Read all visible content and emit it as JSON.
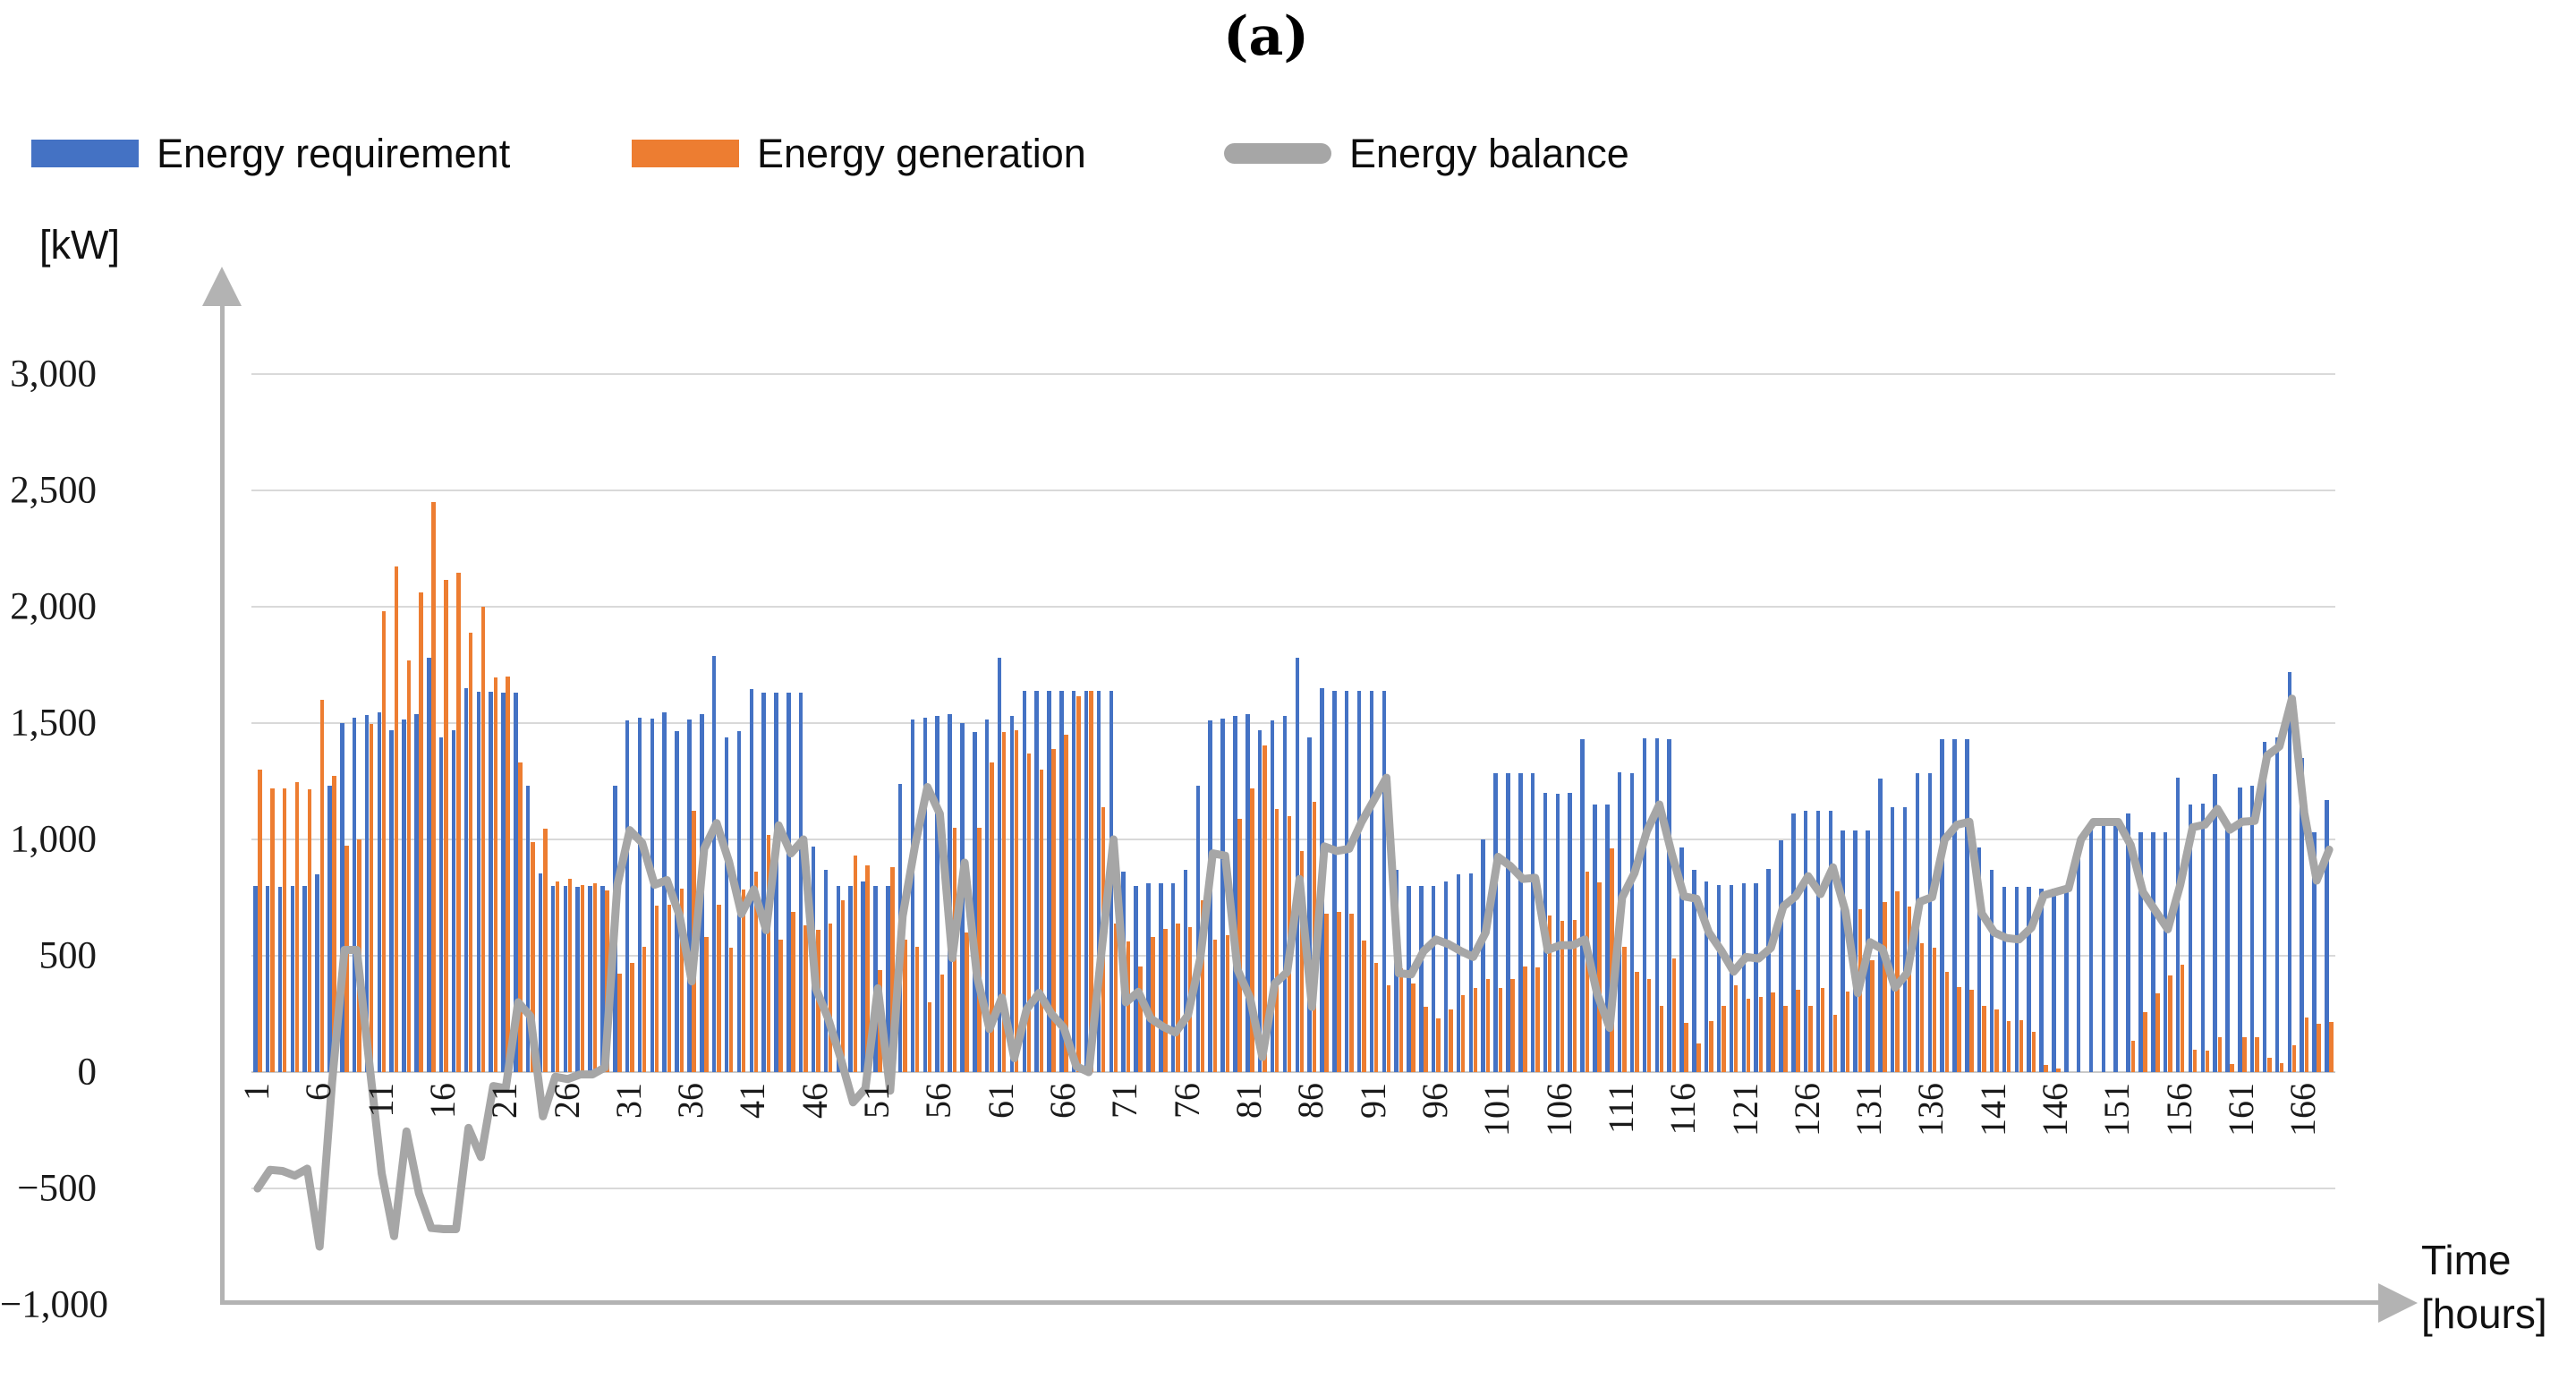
{
  "title": "(a)",
  "legend": {
    "items": [
      {
        "label": "Energy requirement",
        "color": "#4472C4",
        "shape": "rect"
      },
      {
        "label": "Energy generation",
        "color": "#ED7D31",
        "shape": "rect"
      },
      {
        "label": "Energy balance",
        "color": "#A6A6A6",
        "shape": "line"
      }
    ]
  },
  "y_axis": {
    "unit_label": "[kW]",
    "ticks": [
      {
        "label": "3,000",
        "value": 3000
      },
      {
        "label": "2,500",
        "value": 2500
      },
      {
        "label": "2,000",
        "value": 2000
      },
      {
        "label": "1,500",
        "value": 1500
      },
      {
        "label": "1,000",
        "value": 1000
      },
      {
        "label": "500",
        "value": 500
      },
      {
        "label": "0",
        "value": 0
      },
      {
        "label": "−500",
        "value": -500
      },
      {
        "label": "−1,000",
        "value": -1000
      }
    ],
    "gridline_values": [
      3000,
      2500,
      2000,
      1500,
      1000,
      500,
      0,
      -500
    ]
  },
  "x_axis": {
    "title_line1": "Time",
    "title_line2": "[hours]",
    "tick_hours": [
      1,
      6,
      11,
      16,
      21,
      26,
      31,
      36,
      41,
      46,
      51,
      56,
      61,
      66,
      71,
      76,
      81,
      86,
      91,
      96,
      101,
      106,
      111,
      116,
      121,
      126,
      131,
      136,
      141,
      146,
      151,
      156,
      161,
      166
    ]
  },
  "chart_data": {
    "type": "bar+line",
    "x_start_hour": 1,
    "hours_total": 168,
    "ylim": [
      -1000,
      3000
    ],
    "grid": "horizontal",
    "legend_position": "top-left",
    "series": [
      {
        "name": "Energy requirement",
        "type": "bar",
        "color": "#4472C4",
        "values": [
          800,
          800,
          795,
          800,
          800,
          850,
          1230,
          1500,
          1525,
          1535,
          1545,
          1470,
          1515,
          1540,
          1780,
          1440,
          1470,
          1650,
          1635,
          1635,
          1630,
          1630,
          1230,
          855,
          800,
          800,
          795,
          800,
          800,
          1230,
          1510,
          1525,
          1520,
          1545,
          1465,
          1515,
          1540,
          1790,
          1440,
          1465,
          1645,
          1630,
          1630,
          1630,
          1630,
          970,
          870,
          800,
          800,
          820,
          800,
          800,
          1240,
          1515,
          1525,
          1530,
          1540,
          1500,
          1460,
          1515,
          1780,
          1530,
          1640,
          1640,
          1640,
          1640,
          1640,
          1640,
          1640,
          1640,
          860,
          800,
          810,
          810,
          810,
          870,
          1230,
          1510,
          1520,
          1530,
          1540,
          1470,
          1510,
          1530,
          1780,
          1440,
          1650,
          1640,
          1640,
          1640,
          1640,
          1640,
          870,
          800,
          800,
          800,
          820,
          850,
          855,
          1000,
          1285,
          1285,
          1285,
          1285,
          1200,
          1195,
          1200,
          1430,
          1150,
          1150,
          1290,
          1285,
          1435,
          1435,
          1430,
          965,
          870,
          820,
          805,
          805,
          810,
          810,
          875,
          995,
          1110,
          1125,
          1125,
          1125,
          1040,
          1040,
          1040,
          1260,
          1140,
          1140,
          1285,
          1285,
          1430,
          1430,
          1430,
          965,
          870,
          795,
          795,
          795,
          790,
          790,
          790,
          1000,
          1075,
          1075,
          1075,
          1110,
          1030,
          1030,
          1030,
          1265,
          1150,
          1155,
          1280,
          1075,
          1225,
          1230,
          1420,
          1440,
          1720,
          1350,
          1030,
          1170
        ]
      },
      {
        "name": "Energy generation",
        "type": "bar",
        "color": "#ED7D31",
        "values": [
          1300,
          1220,
          1220,
          1245,
          1215,
          1600,
          1275,
          975,
          1000,
          1495,
          1980,
          2175,
          1770,
          2060,
          2450,
          2115,
          2145,
          1890,
          2000,
          1695,
          1700,
          1330,
          990,
          1045,
          820,
          830,
          805,
          810,
          780,
          425,
          470,
          540,
          715,
          720,
          790,
          1125,
          580,
          720,
          535,
          785,
          860,
          1020,
          570,
          690,
          630,
          610,
          640,
          740,
          930,
          890,
          440,
          880,
          570,
          540,
          300,
          420,
          1050,
          600,
          1050,
          1330,
          1460,
          1470,
          1370,
          1300,
          1390,
          1450,
          1615,
          1640,
          1140,
          640,
          560,
          455,
          580,
          615,
          640,
          625,
          740,
          570,
          590,
          1090,
          1220,
          1405,
          1130,
          1100,
          950,
          1160,
          680,
          690,
          680,
          565,
          470,
          375,
          445,
          380,
          280,
          230,
          270,
          330,
          360,
          400,
          360,
          400,
          455,
          450,
          675,
          650,
          655,
          860,
          815,
          960,
          540,
          430,
          400,
          285,
          490,
          210,
          125,
          220,
          283,
          373,
          315,
          322,
          341,
          283,
          354,
          283,
          360,
          245,
          348,
          700,
          482,
          732,
          777,
          713,
          553,
          533,
          431,
          367,
          354,
          283,
          270,
          219,
          225,
          174,
          30,
          15,
          0,
          0,
          0,
          0,
          0,
          134,
          257,
          337,
          416,
          460,
          98,
          91,
          149,
          33,
          149,
          150,
          60,
          40,
          115,
          236,
          207,
          214
        ]
      },
      {
        "name": "Energy balance",
        "type": "line",
        "color": "#A6A6A6",
        "values": [
          -500,
          -420,
          -425,
          -445,
          -415,
          -750,
          -45,
          525,
          525,
          40,
          -435,
          -705,
          -255,
          -520,
          -670,
          -675,
          -675,
          -240,
          -365,
          -60,
          -70,
          300,
          240,
          -190,
          -20,
          -30,
          -10,
          -10,
          20,
          805,
          1040,
          985,
          805,
          825,
          675,
          390,
          960,
          1070,
          905,
          680,
          785,
          610,
          1060,
          940,
          1000,
          360,
          230,
          60,
          -130,
          -70,
          360,
          -80,
          670,
          975,
          1225,
          1110,
          490,
          900,
          410,
          185,
          320,
          60,
          270,
          340,
          250,
          190,
          25,
          0,
          500,
          1000,
          300,
          345,
          230,
          195,
          170,
          245,
          490,
          940,
          930,
          440,
          320,
          65,
          380,
          430,
          830,
          280,
          970,
          950,
          960,
          1075,
          1170,
          1265,
          425,
          420,
          520,
          570,
          550,
          520,
          495,
          600,
          925,
          885,
          830,
          835,
          525,
          545,
          545,
          570,
          335,
          190,
          750,
          855,
          1035,
          1150,
          940,
          755,
          745,
          600,
          522,
          432,
          495,
          488,
          534,
          712,
          756,
          842,
          765,
          880,
          692,
          340,
          558,
          528,
          363,
          427,
          732,
          752,
          999,
          1063,
          1076,
          682,
          600,
          576,
          570,
          621,
          760,
          775,
          790,
          1000,
          1075,
          1075,
          1075,
          976,
          773,
          693,
          614,
          805,
          1052,
          1064,
          1131,
          1042,
          1076,
          1080,
          1360,
          1400,
          1605,
          1114,
          823,
          956
        ]
      }
    ]
  },
  "colors": {
    "requirement_bar": "#4472C4",
    "generation_bar": "#ED7D31",
    "balance_line": "#A6A6A6",
    "gridline": "#D9D9D9",
    "axis": "#B3B3B3",
    "text": "#1A1A1A"
  }
}
